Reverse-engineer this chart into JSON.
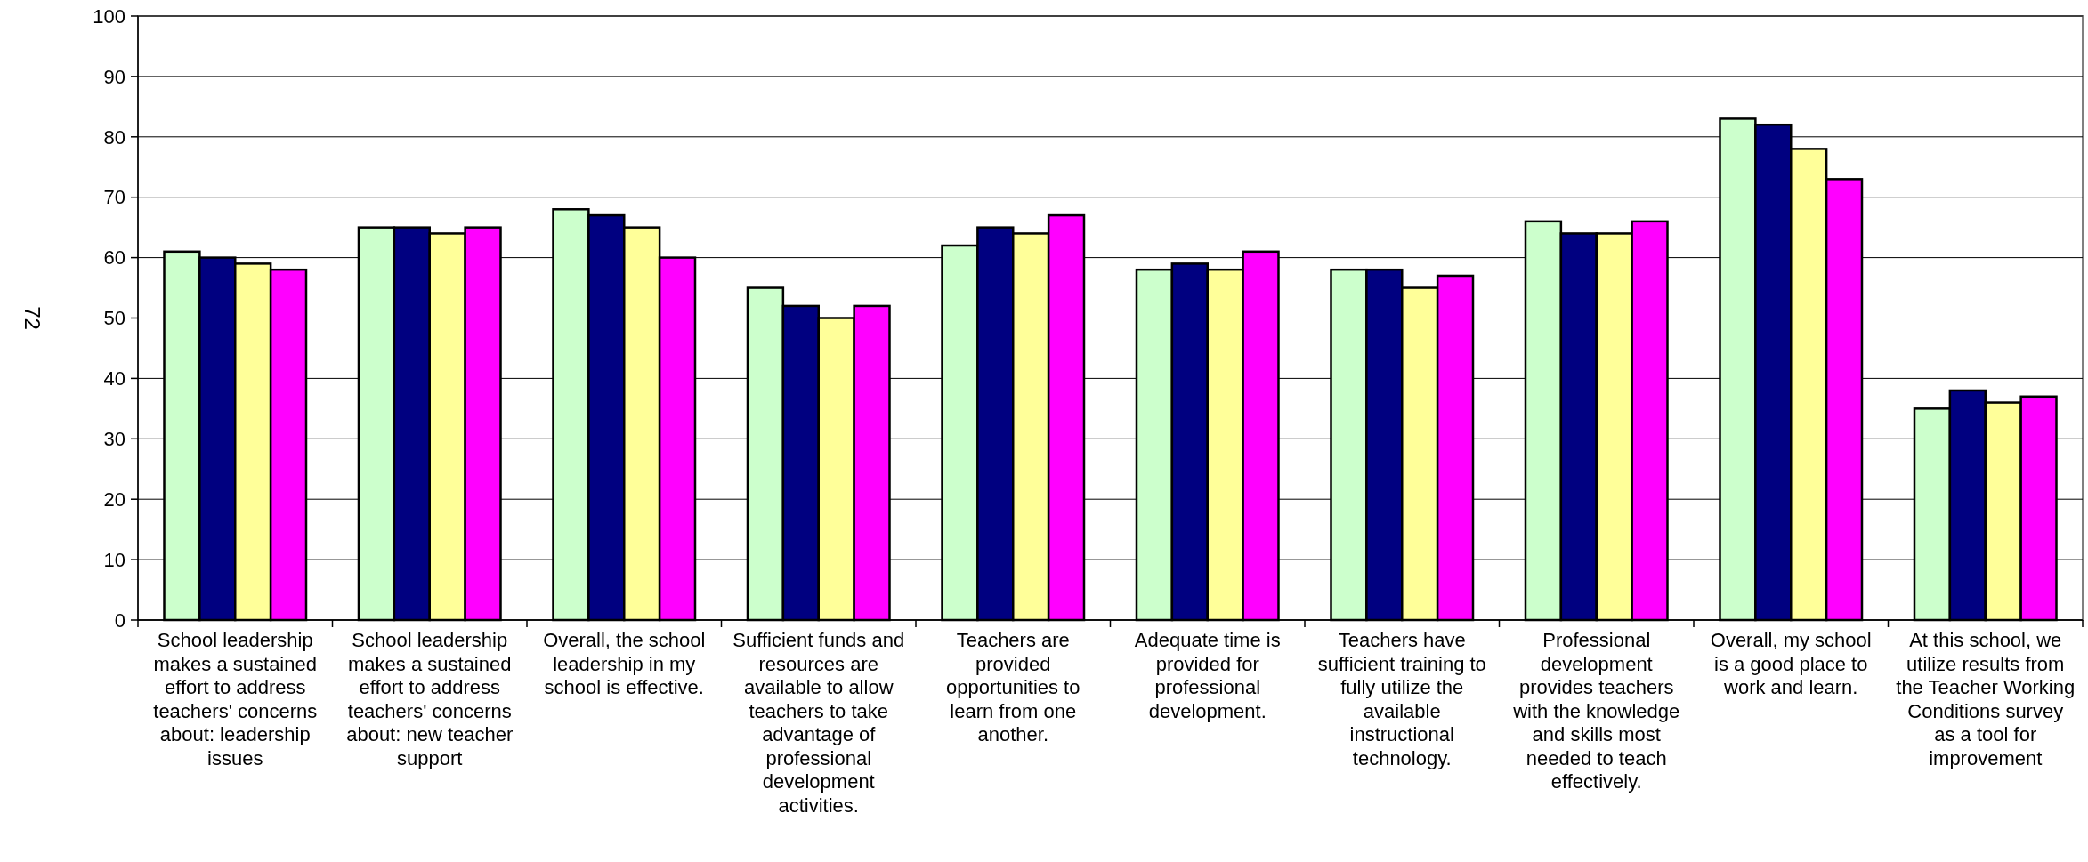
{
  "chart_data": {
    "type": "bar",
    "ylabel": "72",
    "categories": [
      "School leadership makes a sustained effort to address teachers' concerns about: leadership issues",
      "School leadership makes a sustained effort to address teachers' concerns about: new teacher support",
      "Overall, the school leadership in my school is effective.",
      "Sufficient funds and resources are available to allow teachers to take advantage of professional development activities.",
      "Teachers are provided opportunities to learn from one another.",
      "Adequate time is provided for professional development.",
      "Teachers have sufficient training to fully utilize the available instructional technology.",
      "Professional development provides teachers with the knowledge and skills most needed to teach effectively.",
      "Overall, my school is a good place to work and learn.",
      "At this school, we utilize results from the Teacher Working Conditions survey as a tool for improvement"
    ],
    "series": [
      {
        "color": "#ccffcc",
        "values": [
          61,
          65,
          68,
          55,
          62,
          58,
          58,
          66,
          83,
          35
        ]
      },
      {
        "color": "#000080",
        "values": [
          60,
          65,
          67,
          52,
          65,
          59,
          58,
          64,
          82,
          38
        ]
      },
      {
        "color": "#ffff99",
        "values": [
          59,
          64,
          65,
          50,
          64,
          58,
          55,
          64,
          78,
          36
        ]
      },
      {
        "color": "#ff00ff",
        "values": [
          58,
          65,
          60,
          52,
          67,
          61,
          57,
          66,
          73,
          37
        ]
      }
    ],
    "ylim": [
      0,
      100
    ],
    "yticks": [
      0,
      10,
      20,
      30,
      40,
      50,
      60,
      70,
      80,
      90,
      100
    ],
    "grid": "y"
  }
}
